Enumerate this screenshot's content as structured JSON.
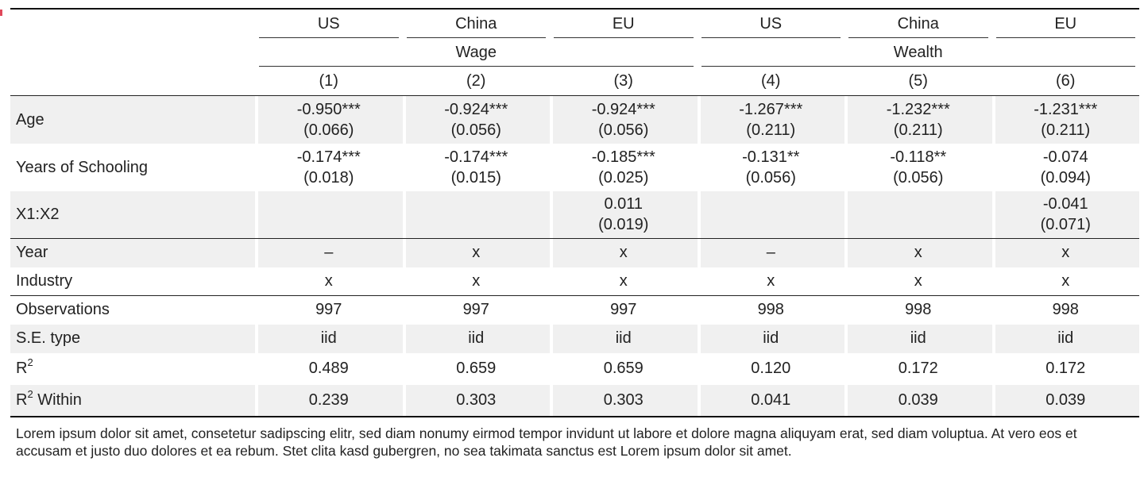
{
  "table": {
    "header_countries": [
      "US",
      "China",
      "EU",
      "US",
      "China",
      "EU"
    ],
    "header_groups": [
      "Wage",
      "Wealth"
    ],
    "header_numbers": [
      "(1)",
      "(2)",
      "(3)",
      "(4)",
      "(5)",
      "(6)"
    ],
    "coefficients": [
      {
        "label": "Age",
        "values": [
          "-0.950***",
          "-0.924***",
          "-0.924***",
          "-1.267***",
          "-1.232***",
          "-1.231***"
        ],
        "se": [
          "(0.066)",
          "(0.056)",
          "(0.056)",
          "(0.211)",
          "(0.211)",
          "(0.211)"
        ]
      },
      {
        "label": "Years of Schooling",
        "values": [
          "-0.174***",
          "-0.174***",
          "-0.185***",
          "-0.131**",
          "-0.118**",
          "-0.074"
        ],
        "se": [
          "(0.018)",
          "(0.015)",
          "(0.025)",
          "(0.056)",
          "(0.056)",
          "(0.094)"
        ]
      },
      {
        "label": "X1:X2",
        "values": [
          "",
          "",
          "0.011",
          "",
          "",
          "-0.041"
        ],
        "se": [
          "",
          "",
          "(0.019)",
          "",
          "",
          "(0.071)"
        ]
      }
    ],
    "fixed_effects": [
      {
        "label": "Year",
        "values": [
          "–",
          "x",
          "x",
          "–",
          "x",
          "x"
        ]
      },
      {
        "label": "Industry",
        "values": [
          "x",
          "x",
          "x",
          "x",
          "x",
          "x"
        ]
      }
    ],
    "stats": {
      "observations": {
        "label": "Observations",
        "values": [
          "997",
          "997",
          "997",
          "998",
          "998",
          "998"
        ]
      },
      "se_type": {
        "label": "S.E. type",
        "values": [
          "iid",
          "iid",
          "iid",
          "iid",
          "iid",
          "iid"
        ]
      },
      "r2": {
        "label": "R",
        "sup": "2",
        "values": [
          "0.489",
          "0.659",
          "0.659",
          "0.120",
          "0.172",
          "0.172"
        ]
      },
      "r2_within": {
        "label": "R",
        "sup": "2",
        "suffix": " Within",
        "values": [
          "0.239",
          "0.303",
          "0.303",
          "0.041",
          "0.039",
          "0.039"
        ]
      }
    }
  },
  "note": "Lorem ipsum dolor sit amet, consetetur sadipscing elitr, sed diam nonumy eirmod tempor invidunt ut labore et dolore magna aliquyam erat, sed diam voluptua. At vero eos et accusam et justo duo dolores et ea rebum. Stet clita kasd gubergren, no sea takimata sanctus est Lorem ipsum dolor sit amet."
}
